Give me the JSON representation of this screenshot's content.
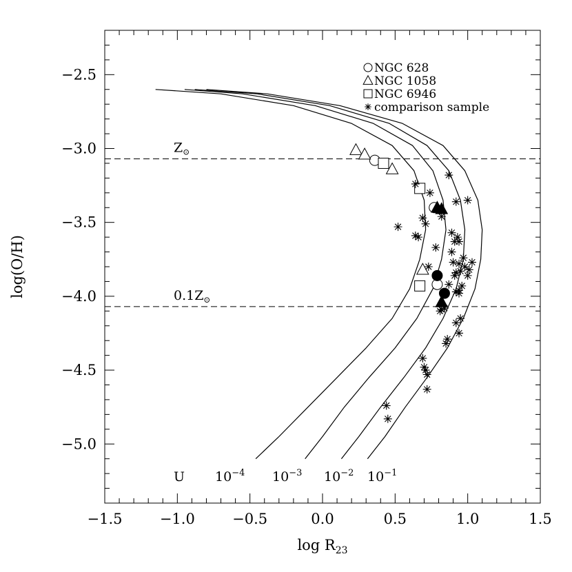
{
  "chart_data": {
    "type": "scatter",
    "title": "",
    "xlabel": "log R",
    "xlabel_sub": "23",
    "ylabel": "log(O/H)",
    "xlim": [
      -1.5,
      1.5
    ],
    "ylim": [
      -5.4,
      -2.2
    ],
    "xticks": [
      -1.5,
      -1.0,
      -0.5,
      0.0,
      0.5,
      1.0,
      1.5
    ],
    "xtick_labels": [
      "−1.5",
      "−1.0",
      "−0.5",
      "0.0",
      "0.5",
      "1.0",
      "1.5"
    ],
    "yticks": [
      -5.0,
      -4.5,
      -4.0,
      -3.5,
      -3.0,
      -2.5
    ],
    "ytick_labels": [
      "−5.0",
      "−4.5",
      "−4.0",
      "−3.5",
      "−3.0",
      "−2.5"
    ],
    "grid": false,
    "legend_position": "top-right",
    "reference_lines": [
      {
        "y": -3.07,
        "label": "Z",
        "label_symbol": "⊙",
        "style": "dashed"
      },
      {
        "y": -4.07,
        "label": "0.1Z",
        "label_symbol": "⊙",
        "style": "dashed"
      }
    ],
    "model_curves": {
      "prefix": "U",
      "mantissa": "10",
      "lines": [
        {
          "exponent": "−4",
          "points": [
            [
              -0.46,
              -5.1
            ],
            [
              -0.3,
              -4.95
            ],
            [
              -0.1,
              -4.75
            ],
            [
              0.1,
              -4.55
            ],
            [
              0.3,
              -4.35
            ],
            [
              0.48,
              -4.15
            ],
            [
              0.6,
              -3.95
            ],
            [
              0.67,
              -3.75
            ],
            [
              0.71,
              -3.55
            ],
            [
              0.7,
              -3.35
            ],
            [
              0.63,
              -3.15
            ],
            [
              0.48,
              -2.98
            ],
            [
              0.2,
              -2.83
            ],
            [
              -0.2,
              -2.71
            ],
            [
              -0.7,
              -2.63
            ],
            [
              -1.15,
              -2.6
            ]
          ]
        },
        {
          "exponent": "−3",
          "points": [
            [
              -0.12,
              -5.1
            ],
            [
              0.0,
              -4.95
            ],
            [
              0.15,
              -4.75
            ],
            [
              0.32,
              -4.55
            ],
            [
              0.5,
              -4.35
            ],
            [
              0.65,
              -4.15
            ],
            [
              0.76,
              -3.95
            ],
            [
              0.82,
              -3.75
            ],
            [
              0.85,
              -3.55
            ],
            [
              0.83,
              -3.35
            ],
            [
              0.76,
              -3.15
            ],
            [
              0.62,
              -2.98
            ],
            [
              0.35,
              -2.83
            ],
            [
              -0.05,
              -2.71
            ],
            [
              -0.55,
              -2.63
            ],
            [
              -0.95,
              -2.6
            ]
          ]
        },
        {
          "exponent": "−2",
          "points": [
            [
              0.13,
              -5.1
            ],
            [
              0.25,
              -4.95
            ],
            [
              0.4,
              -4.75
            ],
            [
              0.56,
              -4.55
            ],
            [
              0.71,
              -4.35
            ],
            [
              0.83,
              -4.15
            ],
            [
              0.92,
              -3.95
            ],
            [
              0.97,
              -3.75
            ],
            [
              0.98,
              -3.55
            ],
            [
              0.95,
              -3.35
            ],
            [
              0.87,
              -3.15
            ],
            [
              0.72,
              -2.98
            ],
            [
              0.46,
              -2.83
            ],
            [
              0.05,
              -2.71
            ],
            [
              -0.45,
              -2.63
            ],
            [
              -0.88,
              -2.6
            ]
          ]
        },
        {
          "exponent": "−1",
          "points": [
            [
              0.31,
              -5.1
            ],
            [
              0.43,
              -4.95
            ],
            [
              0.57,
              -4.75
            ],
            [
              0.72,
              -4.55
            ],
            [
              0.86,
              -4.35
            ],
            [
              0.97,
              -4.15
            ],
            [
              1.05,
              -3.95
            ],
            [
              1.09,
              -3.75
            ],
            [
              1.1,
              -3.55
            ],
            [
              1.07,
              -3.35
            ],
            [
              0.98,
              -3.15
            ],
            [
              0.83,
              -2.98
            ],
            [
              0.55,
              -2.83
            ],
            [
              0.12,
              -2.71
            ],
            [
              -0.38,
              -2.63
            ],
            [
              -0.8,
              -2.6
            ]
          ]
        }
      ]
    },
    "series": [
      {
        "name": "NGC 628",
        "marker": "circle",
        "open": [
          [
            0.36,
            -3.08
          ],
          [
            0.77,
            -3.4
          ],
          [
            0.79,
            -3.92
          ]
        ],
        "filled": [
          [
            0.79,
            -3.86
          ],
          [
            0.84,
            -3.98
          ]
        ]
      },
      {
        "name": "NGC 1058",
        "marker": "triangle",
        "open": [
          [
            0.23,
            -3.01
          ],
          [
            0.29,
            -3.04
          ],
          [
            0.48,
            -3.14
          ],
          [
            0.69,
            -3.82
          ]
        ],
        "filled": [
          [
            0.79,
            -3.4
          ],
          [
            0.82,
            -3.41
          ],
          [
            0.82,
            -4.04
          ]
        ]
      },
      {
        "name": "NGC 6946",
        "marker": "square",
        "open": [
          [
            0.42,
            -3.1
          ],
          [
            0.67,
            -3.27
          ],
          [
            0.67,
            -3.93
          ]
        ],
        "filled": []
      },
      {
        "name": "comparison sample",
        "marker": "asterisk",
        "open": [
          [
            0.87,
            -3.18
          ],
          [
            0.64,
            -3.24
          ],
          [
            0.74,
            -3.3
          ],
          [
            0.81,
            -3.42
          ],
          [
            0.82,
            -3.46
          ],
          [
            0.69,
            -3.47
          ],
          [
            0.71,
            -3.51
          ],
          [
            0.52,
            -3.53
          ],
          [
            0.92,
            -3.36
          ],
          [
            1.0,
            -3.35
          ],
          [
            0.89,
            -3.57
          ],
          [
            0.93,
            -3.6
          ],
          [
            0.91,
            -3.63
          ],
          [
            0.94,
            -3.63
          ],
          [
            0.64,
            -3.59
          ],
          [
            0.66,
            -3.6
          ],
          [
            0.78,
            -3.67
          ],
          [
            0.89,
            -3.7
          ],
          [
            0.97,
            -3.74
          ],
          [
            0.9,
            -3.77
          ],
          [
            0.94,
            -3.78
          ],
          [
            1.03,
            -3.77
          ],
          [
            0.98,
            -3.8
          ],
          [
            1.01,
            -3.82
          ],
          [
            0.92,
            -3.84
          ],
          [
            0.95,
            -3.83
          ],
          [
            0.91,
            -3.86
          ],
          [
            1.0,
            -3.86
          ],
          [
            0.73,
            -3.8
          ],
          [
            0.87,
            -3.92
          ],
          [
            0.96,
            -3.93
          ],
          [
            0.94,
            -3.96
          ],
          [
            0.92,
            -3.97
          ],
          [
            0.94,
            -3.98
          ],
          [
            0.84,
            -4.08
          ],
          [
            0.82,
            -4.09
          ],
          [
            0.81,
            -4.1
          ],
          [
            0.95,
            -4.15
          ],
          [
            0.92,
            -4.18
          ],
          [
            0.94,
            -4.25
          ],
          [
            0.86,
            -4.29
          ],
          [
            0.85,
            -4.32
          ],
          [
            0.69,
            -4.42
          ],
          [
            0.7,
            -4.48
          ],
          [
            0.71,
            -4.5
          ],
          [
            0.72,
            -4.53
          ],
          [
            0.72,
            -4.63
          ],
          [
            0.44,
            -4.74
          ],
          [
            0.45,
            -4.83
          ]
        ],
        "filled": []
      }
    ]
  }
}
